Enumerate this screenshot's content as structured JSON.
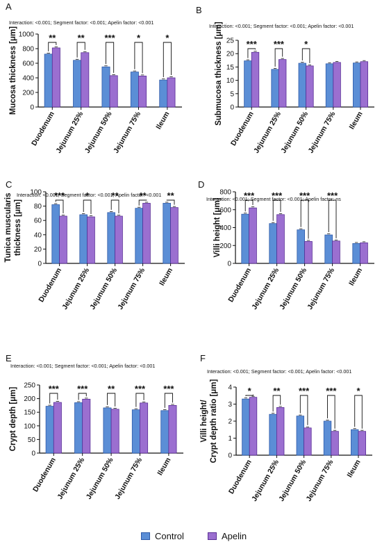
{
  "legend": {
    "items": [
      {
        "label": "Control",
        "color": "#5b8ed6",
        "edge": "#2e5aa8"
      },
      {
        "label": "Apelin",
        "color": "#9b6fd0",
        "edge": "#5a2e96"
      }
    ]
  },
  "chart_data": [
    {
      "panel": "A",
      "type": "bar",
      "stats": "Interaction: <0.001; Segment factor: <0.001;  Apelin factor: <0.001",
      "ylabel": "Mucosa thickness [μm]",
      "ylim": [
        0,
        1000
      ],
      "yticks": [
        0,
        200,
        400,
        600,
        800,
        1000
      ],
      "categories": [
        "Duodenum",
        "Jejunum 25%",
        "Jejunum 50%",
        "Jejunum 75%",
        "Ileum"
      ],
      "series": [
        {
          "name": "Control",
          "values": [
            725,
            640,
            550,
            480,
            370
          ]
        },
        {
          "name": "Apelin",
          "values": [
            810,
            745,
            430,
            425,
            400
          ]
        }
      ],
      "significance": [
        "**",
        "**",
        "***",
        "*",
        "*"
      ]
    },
    {
      "panel": "B",
      "type": "bar",
      "stats": "Interaction: <0.001; Segment factor: <0.001;  Apelin factor: <0.001",
      "ylabel": "Submucosa thickness [μm]",
      "ylim": [
        0,
        25
      ],
      "yticks": [
        0,
        5,
        10,
        15,
        20,
        25
      ],
      "categories": [
        "Duodenum",
        "Jejunum 25%",
        "Jejunum 50%",
        "Jejunum 75%",
        "Ileum"
      ],
      "series": [
        {
          "name": "Control",
          "values": [
            17.3,
            14.1,
            16.4,
            16.2,
            16.5
          ]
        },
        {
          "name": "Apelin",
          "values": [
            20.5,
            17.8,
            15.4,
            16.7,
            17.0
          ]
        }
      ],
      "significance": [
        "***",
        "***",
        "*",
        "",
        ""
      ]
    },
    {
      "panel": "C",
      "type": "bar",
      "stats": "Interaction: <0.001; Segment factor: <0.001;  Apelin factor: <0.001",
      "ylabel": "Tunica muscularis thickness [μm]",
      "ylabel_lines": [
        "Tunica muscularis",
        "thickness [μm]"
      ],
      "ylim": [
        0,
        100
      ],
      "yticks": [
        0,
        20,
        40,
        60,
        80,
        100
      ],
      "categories": [
        "Duodenum",
        "Jejunum 25%",
        "Jejunum 50%",
        "Jejunum 75%",
        "Ileum"
      ],
      "series": [
        {
          "name": "Control",
          "values": [
            82,
            68,
            71,
            77,
            84
          ]
        },
        {
          "name": "Apelin",
          "values": [
            66,
            65,
            66,
            84,
            78
          ]
        }
      ],
      "significance": [
        "***",
        "*",
        "**",
        "**",
        "**"
      ]
    },
    {
      "panel": "D",
      "type": "bar",
      "stats": "Interaction: <0.001; Segment factor: <0.001;  Apelin factor: ns",
      "ylabel": "Villi height [μm]",
      "ylim": [
        0,
        800
      ],
      "yticks": [
        0,
        200,
        400,
        600,
        800
      ],
      "categories": [
        "Duodenum",
        "Jejunum 25%",
        "Jejunum 50%",
        "Jejunum 75%",
        "Ileum"
      ],
      "series": [
        {
          "name": "Control",
          "values": [
            550,
            445,
            375,
            318,
            222
          ]
        },
        {
          "name": "Apelin",
          "values": [
            620,
            545,
            245,
            250,
            230
          ]
        }
      ],
      "significance": [
        "***",
        "***",
        "***",
        "***",
        ""
      ]
    },
    {
      "panel": "E",
      "type": "bar",
      "stats": "Interaction: <0.001; Segment factor: <0.001;  Apelin factor: <0.001",
      "ylabel": "Crypt depth [μm]",
      "ylim": [
        0,
        250
      ],
      "yticks": [
        0,
        50,
        100,
        150,
        200,
        250
      ],
      "categories": [
        "Duodenum",
        "Jejunum 25%",
        "Jejunum 50%",
        "Jejunum 75%",
        "Ileum"
      ],
      "series": [
        {
          "name": "Control",
          "values": [
            172,
            185,
            166,
            159,
            156
          ]
        },
        {
          "name": "Apelin",
          "values": [
            186,
            198,
            161,
            184,
            175
          ]
        }
      ],
      "significance": [
        "***",
        "***",
        "**",
        "***",
        "***"
      ]
    },
    {
      "panel": "F",
      "type": "bar",
      "stats": "Interaction: <0.001; Segment factor: <0.001;  Apelin factor: <0.001",
      "ylabel": "Villi height/ Crypt depth ratio [μm]",
      "ylabel_lines": [
        "Villi height/",
        "Crypt depth ratio [μm]"
      ],
      "ylim": [
        0,
        4
      ],
      "yticks": [
        0,
        1,
        2,
        3,
        4
      ],
      "categories": [
        "Duodenum",
        "Jejunum 25%",
        "Jejunum 50%",
        "Jejunum 75%",
        "Ileum"
      ],
      "series": [
        {
          "name": "Control",
          "values": [
            3.3,
            2.4,
            2.3,
            2.0,
            1.5
          ]
        },
        {
          "name": "Apelin",
          "values": [
            3.4,
            2.8,
            1.6,
            1.4,
            1.4
          ]
        }
      ],
      "significance": [
        "*",
        "**",
        "***",
        "***",
        "*"
      ]
    }
  ]
}
